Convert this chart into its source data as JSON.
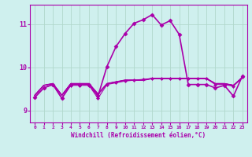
{
  "background_color": "#cff0ee",
  "grid_color": "#b0d8cc",
  "line_color": "#aa00aa",
  "x_label": "Windchill (Refroidissement éolien,°C)",
  "x_ticks": [
    0,
    1,
    2,
    3,
    4,
    5,
    6,
    7,
    8,
    9,
    10,
    11,
    12,
    13,
    14,
    15,
    16,
    17,
    18,
    19,
    20,
    21,
    22,
    23
  ],
  "y_ticks": [
    9,
    10,
    11
  ],
  "ylim": [
    8.72,
    11.45
  ],
  "xlim": [
    -0.5,
    23.5
  ],
  "curves": [
    {
      "x": [
        0,
        1,
        2,
        3,
        4,
        5,
        6,
        7,
        8,
        9,
        10,
        11,
        12,
        13,
        14,
        15,
        16,
        17,
        18,
        19,
        20,
        21,
        22,
        23
      ],
      "y": [
        9.35,
        9.58,
        9.62,
        9.35,
        9.62,
        9.62,
        9.62,
        9.38,
        9.62,
        9.66,
        9.7,
        9.7,
        9.7,
        9.74,
        9.74,
        9.74,
        9.74,
        9.74,
        9.74,
        9.74,
        9.62,
        9.62,
        9.58,
        9.76
      ],
      "style": "-",
      "marker": null,
      "lw": 0.7
    },
    {
      "x": [
        0,
        1,
        2,
        3,
        4,
        5,
        6,
        7,
        8,
        9,
        10,
        11,
        12,
        13,
        14,
        15,
        16,
        17,
        18,
        19,
        20,
        21,
        22,
        23
      ],
      "y": [
        9.35,
        9.58,
        9.62,
        9.35,
        9.62,
        9.62,
        9.62,
        9.38,
        9.62,
        9.66,
        9.7,
        9.7,
        9.7,
        9.74,
        9.74,
        9.74,
        9.74,
        9.74,
        9.74,
        9.74,
        9.62,
        9.62,
        9.58,
        9.76
      ],
      "style": "-",
      "marker": null,
      "lw": 0.7
    },
    {
      "x": [
        0,
        1,
        2,
        3,
        4,
        5,
        6,
        7,
        8,
        9,
        10,
        11,
        12,
        13,
        14,
        15,
        16,
        17,
        18,
        19,
        20,
        21,
        22,
        23
      ],
      "y": [
        9.35,
        9.58,
        9.62,
        9.35,
        9.62,
        9.62,
        9.62,
        9.38,
        9.62,
        9.66,
        9.7,
        9.7,
        9.7,
        9.74,
        9.74,
        9.74,
        9.74,
        9.74,
        9.74,
        9.74,
        9.62,
        9.62,
        9.58,
        9.76
      ],
      "style": "-",
      "marker": null,
      "lw": 1.2
    },
    {
      "x": [
        0,
        1,
        2,
        3,
        4,
        5,
        6,
        7,
        8,
        9,
        10,
        11,
        12,
        13,
        14,
        15,
        16,
        17,
        18,
        19,
        20,
        21,
        22,
        23
      ],
      "y": [
        9.35,
        9.58,
        9.62,
        9.35,
        9.62,
        9.6,
        9.6,
        9.35,
        9.62,
        9.66,
        9.7,
        9.7,
        9.7,
        9.74,
        9.74,
        9.74,
        9.74,
        9.74,
        9.74,
        9.74,
        9.62,
        9.62,
        9.58,
        9.76
      ],
      "style": "--",
      "marker": null,
      "lw": 0.7
    },
    {
      "x": [
        0,
        1,
        2,
        3,
        4,
        5,
        6,
        7,
        8,
        9,
        10,
        11,
        12,
        13,
        14,
        15,
        16,
        17,
        18,
        19,
        20,
        21,
        22,
        23
      ],
      "y": [
        9.3,
        9.52,
        9.6,
        9.28,
        9.58,
        9.58,
        9.58,
        9.28,
        9.6,
        9.64,
        9.68,
        9.7,
        9.72,
        9.74,
        9.74,
        9.74,
        9.74,
        9.74,
        9.74,
        9.74,
        9.6,
        9.6,
        9.56,
        9.78
      ],
      "style": "-",
      "marker": "D",
      "markersize": 2.0,
      "lw": 0.8
    },
    {
      "x": [
        0,
        1,
        2,
        3,
        4,
        5,
        6,
        7,
        8,
        9,
        10,
        11,
        12,
        13,
        14,
        15,
        16,
        17,
        18,
        19,
        20,
        21,
        22,
        23
      ],
      "y": [
        9.3,
        9.52,
        9.6,
        9.28,
        9.6,
        9.6,
        9.6,
        9.33,
        10.02,
        10.48,
        10.78,
        11.02,
        11.1,
        11.22,
        10.98,
        11.08,
        10.76,
        9.6,
        9.6,
        9.6,
        9.52,
        9.58,
        9.33,
        9.8
      ],
      "style": "-",
      "marker": "D",
      "markersize": 2.5,
      "lw": 1.2
    }
  ]
}
